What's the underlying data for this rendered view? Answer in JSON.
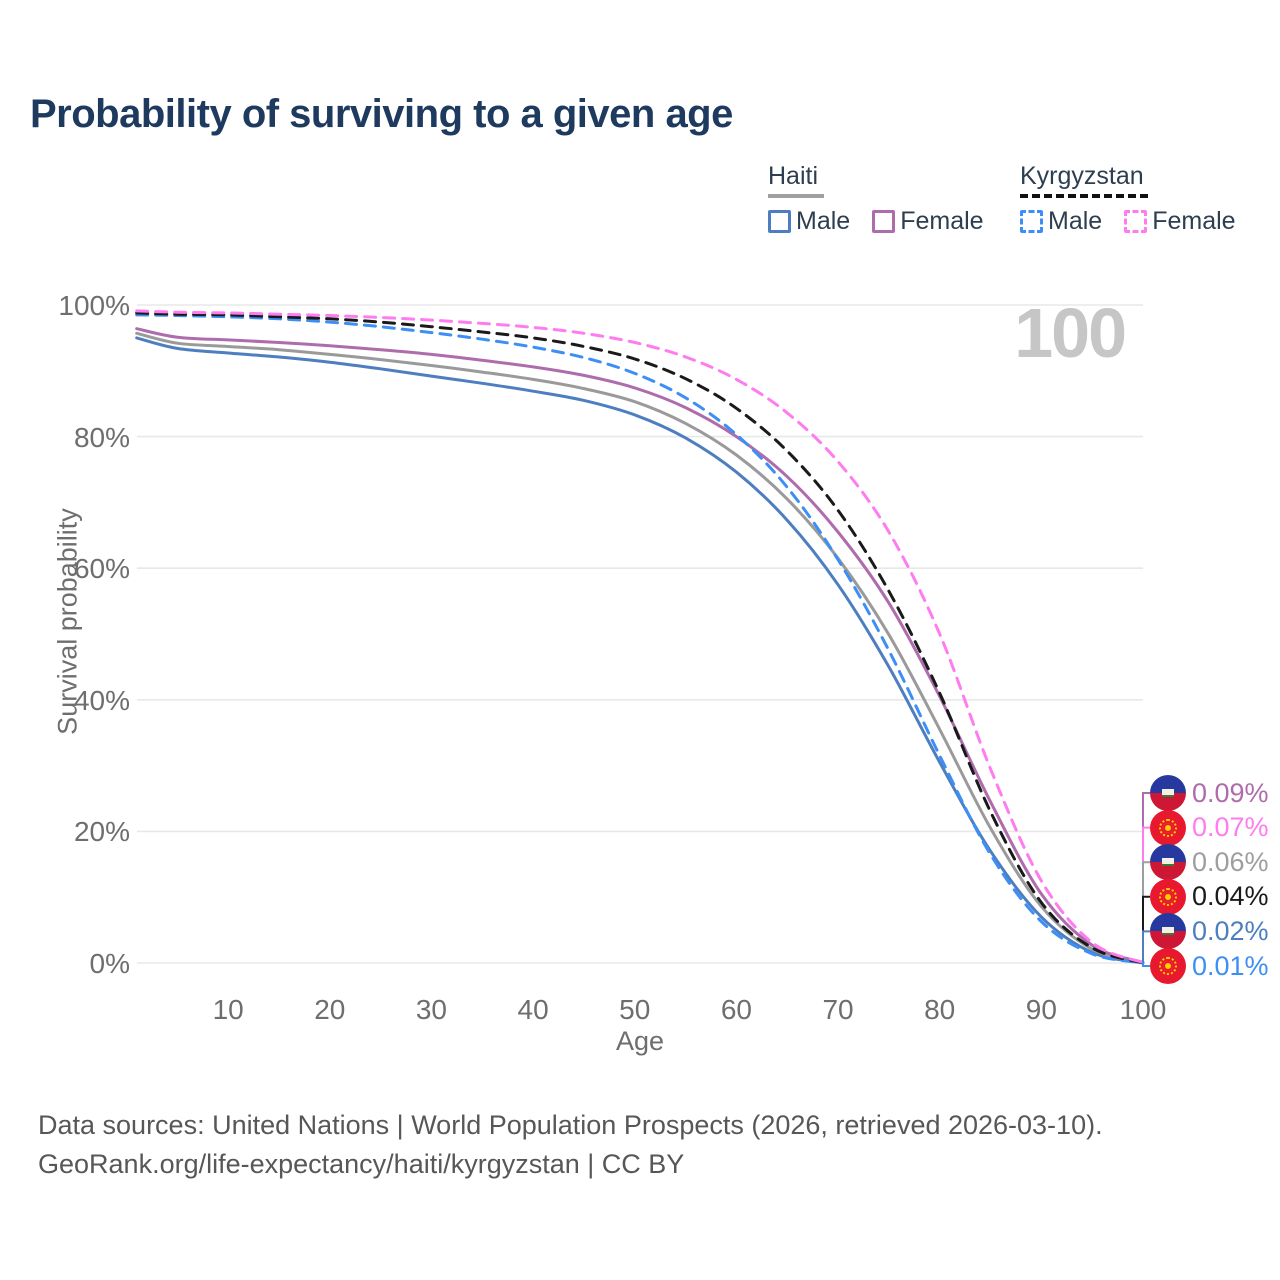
{
  "title": "Probability of surviving to a given age",
  "watermark": "100",
  "legend": {
    "groups": [
      {
        "country": "Haiti",
        "line_style": "solid",
        "line_color": "#9a9a9a",
        "items": [
          {
            "label": "Male",
            "color": "#4d7ebf",
            "dashed": false
          },
          {
            "label": "Female",
            "color": "#af6cac",
            "dashed": false
          }
        ]
      },
      {
        "country": "Kyrgyzstan",
        "line_style": "dashed",
        "line_color": "#1a1a1a",
        "items": [
          {
            "label": "Male",
            "color": "#3d8ef5",
            "dashed": true
          },
          {
            "label": "Female",
            "color": "#ff7cf0",
            "dashed": true
          }
        ]
      }
    ]
  },
  "chart_data": {
    "type": "line",
    "title": "Probability of surviving to a given age",
    "xlabel": "Age",
    "ylabel": "Survival probability",
    "xlim": [
      0,
      100
    ],
    "ylim": [
      0,
      100
    ],
    "grid": "horizontal",
    "legend_position": "top-right",
    "x_ticks": [
      10,
      20,
      30,
      40,
      50,
      60,
      70,
      80,
      90,
      100
    ],
    "y_ticks": [
      {
        "v": 0,
        "label": "0%"
      },
      {
        "v": 20,
        "label": "20%"
      },
      {
        "v": 40,
        "label": "40%"
      },
      {
        "v": 60,
        "label": "60%"
      },
      {
        "v": 80,
        "label": "80%"
      },
      {
        "v": 100,
        "label": "100%"
      }
    ],
    "x": [
      1,
      5,
      10,
      15,
      20,
      25,
      30,
      35,
      40,
      45,
      50,
      55,
      60,
      65,
      70,
      75,
      80,
      85,
      90,
      95,
      100
    ],
    "series": [
      {
        "name": "Haiti Male",
        "country": "Haiti",
        "sex": "Male",
        "color": "#4d7ebf",
        "dashed": false,
        "values": [
          95.0,
          93.4,
          92.7,
          92.1,
          91.3,
          90.3,
          89.2,
          88.1,
          86.9,
          85.5,
          83.3,
          79.8,
          74.6,
          67.3,
          57.5,
          45.0,
          30.5,
          17.0,
          7.0,
          1.6,
          0.02
        ]
      },
      {
        "name": "Haiti Both sexes",
        "country": "Haiti",
        "sex": "Both",
        "color": "#9a9a9a",
        "dashed": false,
        "values": [
          95.7,
          94.2,
          93.7,
          93.2,
          92.5,
          91.7,
          90.8,
          89.8,
          88.7,
          87.3,
          85.3,
          82.0,
          77.2,
          70.5,
          61.5,
          49.9,
          35.5,
          20.5,
          8.6,
          2.1,
          0.06
        ]
      },
      {
        "name": "Haiti Female",
        "country": "Haiti",
        "sex": "Female",
        "color": "#af6cac",
        "dashed": false,
        "values": [
          96.4,
          95.1,
          94.7,
          94.3,
          93.8,
          93.2,
          92.5,
          91.6,
          90.6,
          89.3,
          87.4,
          84.4,
          80.0,
          73.9,
          65.5,
          54.7,
          40.5,
          24.5,
          10.5,
          2.7,
          0.09
        ]
      },
      {
        "name": "Kyrgyzstan Male",
        "country": "Kyrgyzstan",
        "sex": "Male",
        "color": "#3d8ef5",
        "dashed": true,
        "values": [
          98.5,
          98.4,
          98.2,
          97.9,
          97.4,
          96.7,
          95.8,
          94.8,
          93.6,
          92.0,
          89.6,
          85.9,
          80.3,
          72.3,
          61.3,
          47.5,
          31.5,
          16.5,
          6.3,
          1.4,
          0.01
        ]
      },
      {
        "name": "Kyrgyzstan Both sexes",
        "country": "Kyrgyzstan",
        "sex": "Both",
        "color": "#1a1a1a",
        "dashed": true,
        "values": [
          98.8,
          98.6,
          98.5,
          98.2,
          97.9,
          97.4,
          96.7,
          95.9,
          95.0,
          93.7,
          91.8,
          88.8,
          84.3,
          77.8,
          68.8,
          56.5,
          41.0,
          23.0,
          9.2,
          2.3,
          0.04
        ]
      },
      {
        "name": "Kyrgyzstan Female",
        "country": "Kyrgyzstan",
        "sex": "Female",
        "color": "#ff7cf0",
        "dashed": true,
        "values": [
          99.1,
          98.9,
          98.8,
          98.6,
          98.4,
          98.1,
          97.7,
          97.2,
          96.6,
          95.7,
          94.3,
          92.1,
          88.7,
          83.6,
          76.2,
          65.5,
          50.0,
          29.5,
          12.5,
          3.1,
          0.07
        ]
      }
    ],
    "end_labels": [
      {
        "series": "Haiti Female",
        "value": "0.09%",
        "flag": "haiti",
        "color": "#af6cac"
      },
      {
        "series": "Kyrgyzstan Female",
        "value": "0.07%",
        "flag": "kyrgyzstan",
        "color": "#ff7cf0"
      },
      {
        "series": "Haiti Both sexes",
        "value": "0.06%",
        "flag": "haiti",
        "color": "#9e9e9e"
      },
      {
        "series": "Kyrgyzstan Both sexes",
        "value": "0.04%",
        "flag": "kyrgyzstan",
        "color": "#1a1a1a"
      },
      {
        "series": "Haiti Male",
        "value": "0.02%",
        "flag": "haiti",
        "color": "#4d7ebf"
      },
      {
        "series": "Kyrgyzstan Male",
        "value": "0.01%",
        "flag": "kyrgyzstan",
        "color": "#3d8ef5"
      }
    ]
  },
  "footer": {
    "line1": "Data sources: United Nations | World Population Prospects (2026, retrieved 2026-03-10).",
    "line2": "GeoRank.org/life-expectancy/haiti/kyrgyzstan | CC BY"
  }
}
